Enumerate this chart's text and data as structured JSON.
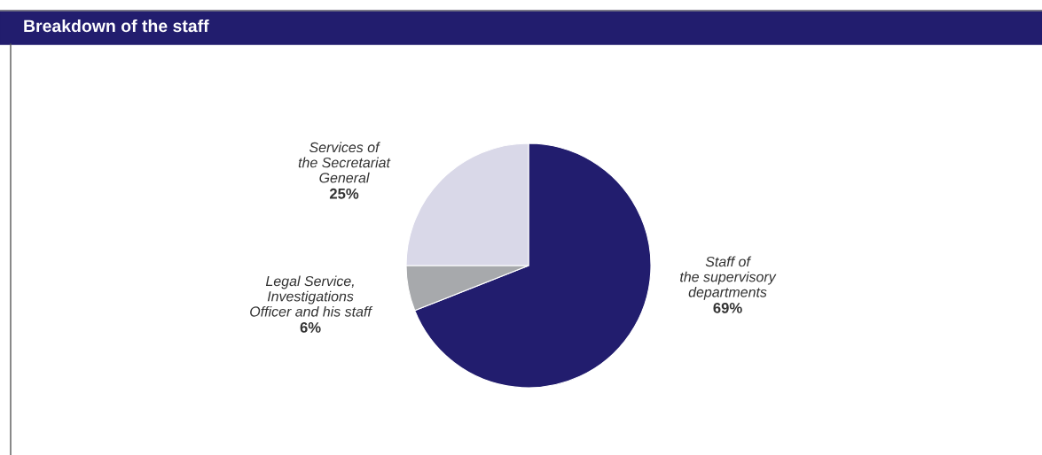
{
  "chart_data": {
    "type": "pie",
    "title": "Breakdown of the staff",
    "categories": [
      "Staff of\nthe supervisory\ndepartments",
      "Legal Service,\nInvestigations\nOfficer and his staff",
      "Services of\nthe Secretariat\nGeneral"
    ],
    "values": [
      69,
      6,
      25
    ],
    "value_labels": [
      "69%",
      "6%",
      "25%"
    ],
    "colors": [
      "#221d6e",
      "#a7a9ac",
      "#d9d8e8"
    ]
  }
}
